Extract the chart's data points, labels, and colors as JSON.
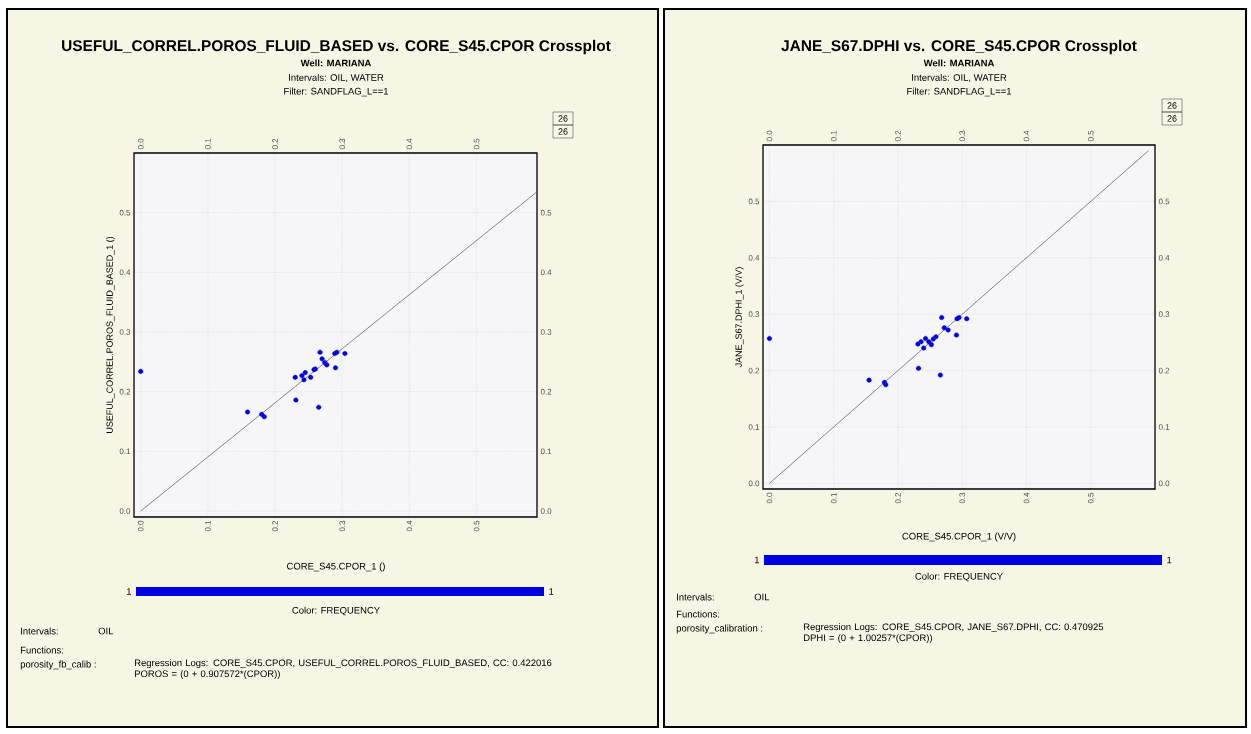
{
  "chart_data": [
    {
      "type": "scatter",
      "title": "USEFUL_CORREL.POROS_FLUID_BASED vs. CORE_S45.CPOR Crossplot",
      "subtitle": "Well: MARIANA",
      "xlabel": "CORE_S45.CPOR_1 ()",
      "ylabel": "USEFUL_CORREL.POROS_FLUID_BASED_1 ()",
      "clabel": "Color: FREQUENCY",
      "annotations": [
        "Intervals: OIL, WATER",
        "Filter: SANDFLAG_L==1",
        "26",
        "26",
        "Intervals:",
        "OIL",
        "Functions:",
        "porosity_fb_calib :",
        "Regression Logs: CORE_S45.CPOR, USEFUL_CORREL.POROS_FLUID_BASED, CC: 0.422016",
        "POROS = (0 + 0.907572*(CPOR))",
        "1",
        "1"
      ],
      "xlim": [
        -0.01,
        0.59
      ],
      "ylim": [
        -0.01,
        0.6
      ],
      "xticks": [
        {
          "value": 0,
          "label": "0.0"
        },
        0.1,
        0.2,
        0.3,
        0.4,
        0.5
      ],
      "yticks": [
        {
          "value": 0,
          "label": "0.0"
        },
        0.1,
        0.2,
        0.3,
        0.4,
        0.5
      ],
      "x2lim": [
        -0.01,
        0.59
      ],
      "y2lim": [
        -0.01,
        0.6
      ],
      "x2ticks": [
        {
          "value": 0,
          "label": "0.0"
        },
        0.1,
        0.2,
        0.3,
        0.4,
        0.5
      ],
      "y2ticks": [
        {
          "value": 0,
          "label": "0.0"
        },
        0.1,
        0.2,
        0.3,
        0.4,
        0.5
      ],
      "grid": true,
      "series": [
        {
          "type": "scatter",
          "marker": "circle",
          "color": "#0000e0",
          "x": [
            0.0,
            0.159,
            0.18,
            0.184,
            0.231,
            0.265,
            0.23,
            0.24,
            0.243,
            0.245,
            0.253,
            0.258,
            0.26,
            0.267,
            0.27,
            0.274,
            0.277,
            0.29,
            0.289,
            0.292,
            0.304
          ],
          "values": [
            0.234,
            0.166,
            0.162,
            0.158,
            0.186,
            0.174,
            0.224,
            0.227,
            0.22,
            0.232,
            0.224,
            0.237,
            0.238,
            0.266,
            0.255,
            0.249,
            0.245,
            0.24,
            0.264,
            0.266,
            0.264
          ]
        },
        {
          "type": "line",
          "marker": "none",
          "color": "#555555",
          "x": [
            0.0,
            0.59
          ],
          "values": [
            0.0,
            0.535
          ]
        }
      ]
    },
    {
      "type": "scatter",
      "title": "JANE_S67.DPHI vs. CORE_S45.CPOR Crossplot",
      "subtitle": "Well: MARIANA",
      "xlabel": "CORE_S45.CPOR_1 (V/V)",
      "ylabel": "JANE_S67.DPHI_1 (V/V)",
      "clabel": "Color: FREQUENCY",
      "annotations": [
        "Intervals: OIL, WATER",
        "Filter: SANDFLAG_L==1",
        "26",
        "26",
        "Intervals:",
        "OIL",
        "Functions:",
        "porosity_calibration :",
        "Regression Logs: CORE_S45.CPOR, JANE_S67.DPHI, CC: 0.470925",
        "DPHI = (0 + 1.00257*(CPOR))",
        "1",
        "1"
      ],
      "xlim": [
        -0.01,
        0.6
      ],
      "ylim": [
        -0.01,
        0.6
      ],
      "xticks": [
        {
          "value": 0,
          "label": "0.0"
        },
        0.1,
        0.2,
        0.3,
        0.4,
        0.5
      ],
      "yticks": [
        {
          "value": 0,
          "label": "0.0"
        },
        0.1,
        0.2,
        0.3,
        0.4,
        0.5
      ],
      "x2lim": [
        -0.01,
        0.6
      ],
      "y2lim": [
        -0.01,
        0.6
      ],
      "x2ticks": [
        {
          "value": 0,
          "label": "0.0"
        },
        0.1,
        0.2,
        0.3,
        0.4,
        0.5
      ],
      "y2ticks": [
        {
          "value": 0,
          "label": "0.0"
        },
        0.1,
        0.2,
        0.3,
        0.4,
        0.5
      ],
      "grid": true,
      "series": [
        {
          "type": "scatter",
          "marker": "circle",
          "color": "#0000e0",
          "x": [
            0.0,
            0.155,
            0.179,
            0.181,
            0.232,
            0.266,
            0.231,
            0.236,
            0.24,
            0.243,
            0.248,
            0.252,
            0.255,
            0.259,
            0.268,
            0.272,
            0.278,
            0.291,
            0.292,
            0.295,
            0.307
          ],
          "values": [
            0.257,
            0.183,
            0.179,
            0.175,
            0.204,
            0.192,
            0.247,
            0.251,
            0.24,
            0.257,
            0.251,
            0.246,
            0.256,
            0.26,
            0.294,
            0.276,
            0.272,
            0.263,
            0.292,
            0.294,
            0.292
          ]
        },
        {
          "type": "line",
          "marker": "none",
          "color": "#555555",
          "x": [
            0.0,
            0.59
          ],
          "values": [
            0.0,
            0.59
          ]
        }
      ]
    }
  ]
}
